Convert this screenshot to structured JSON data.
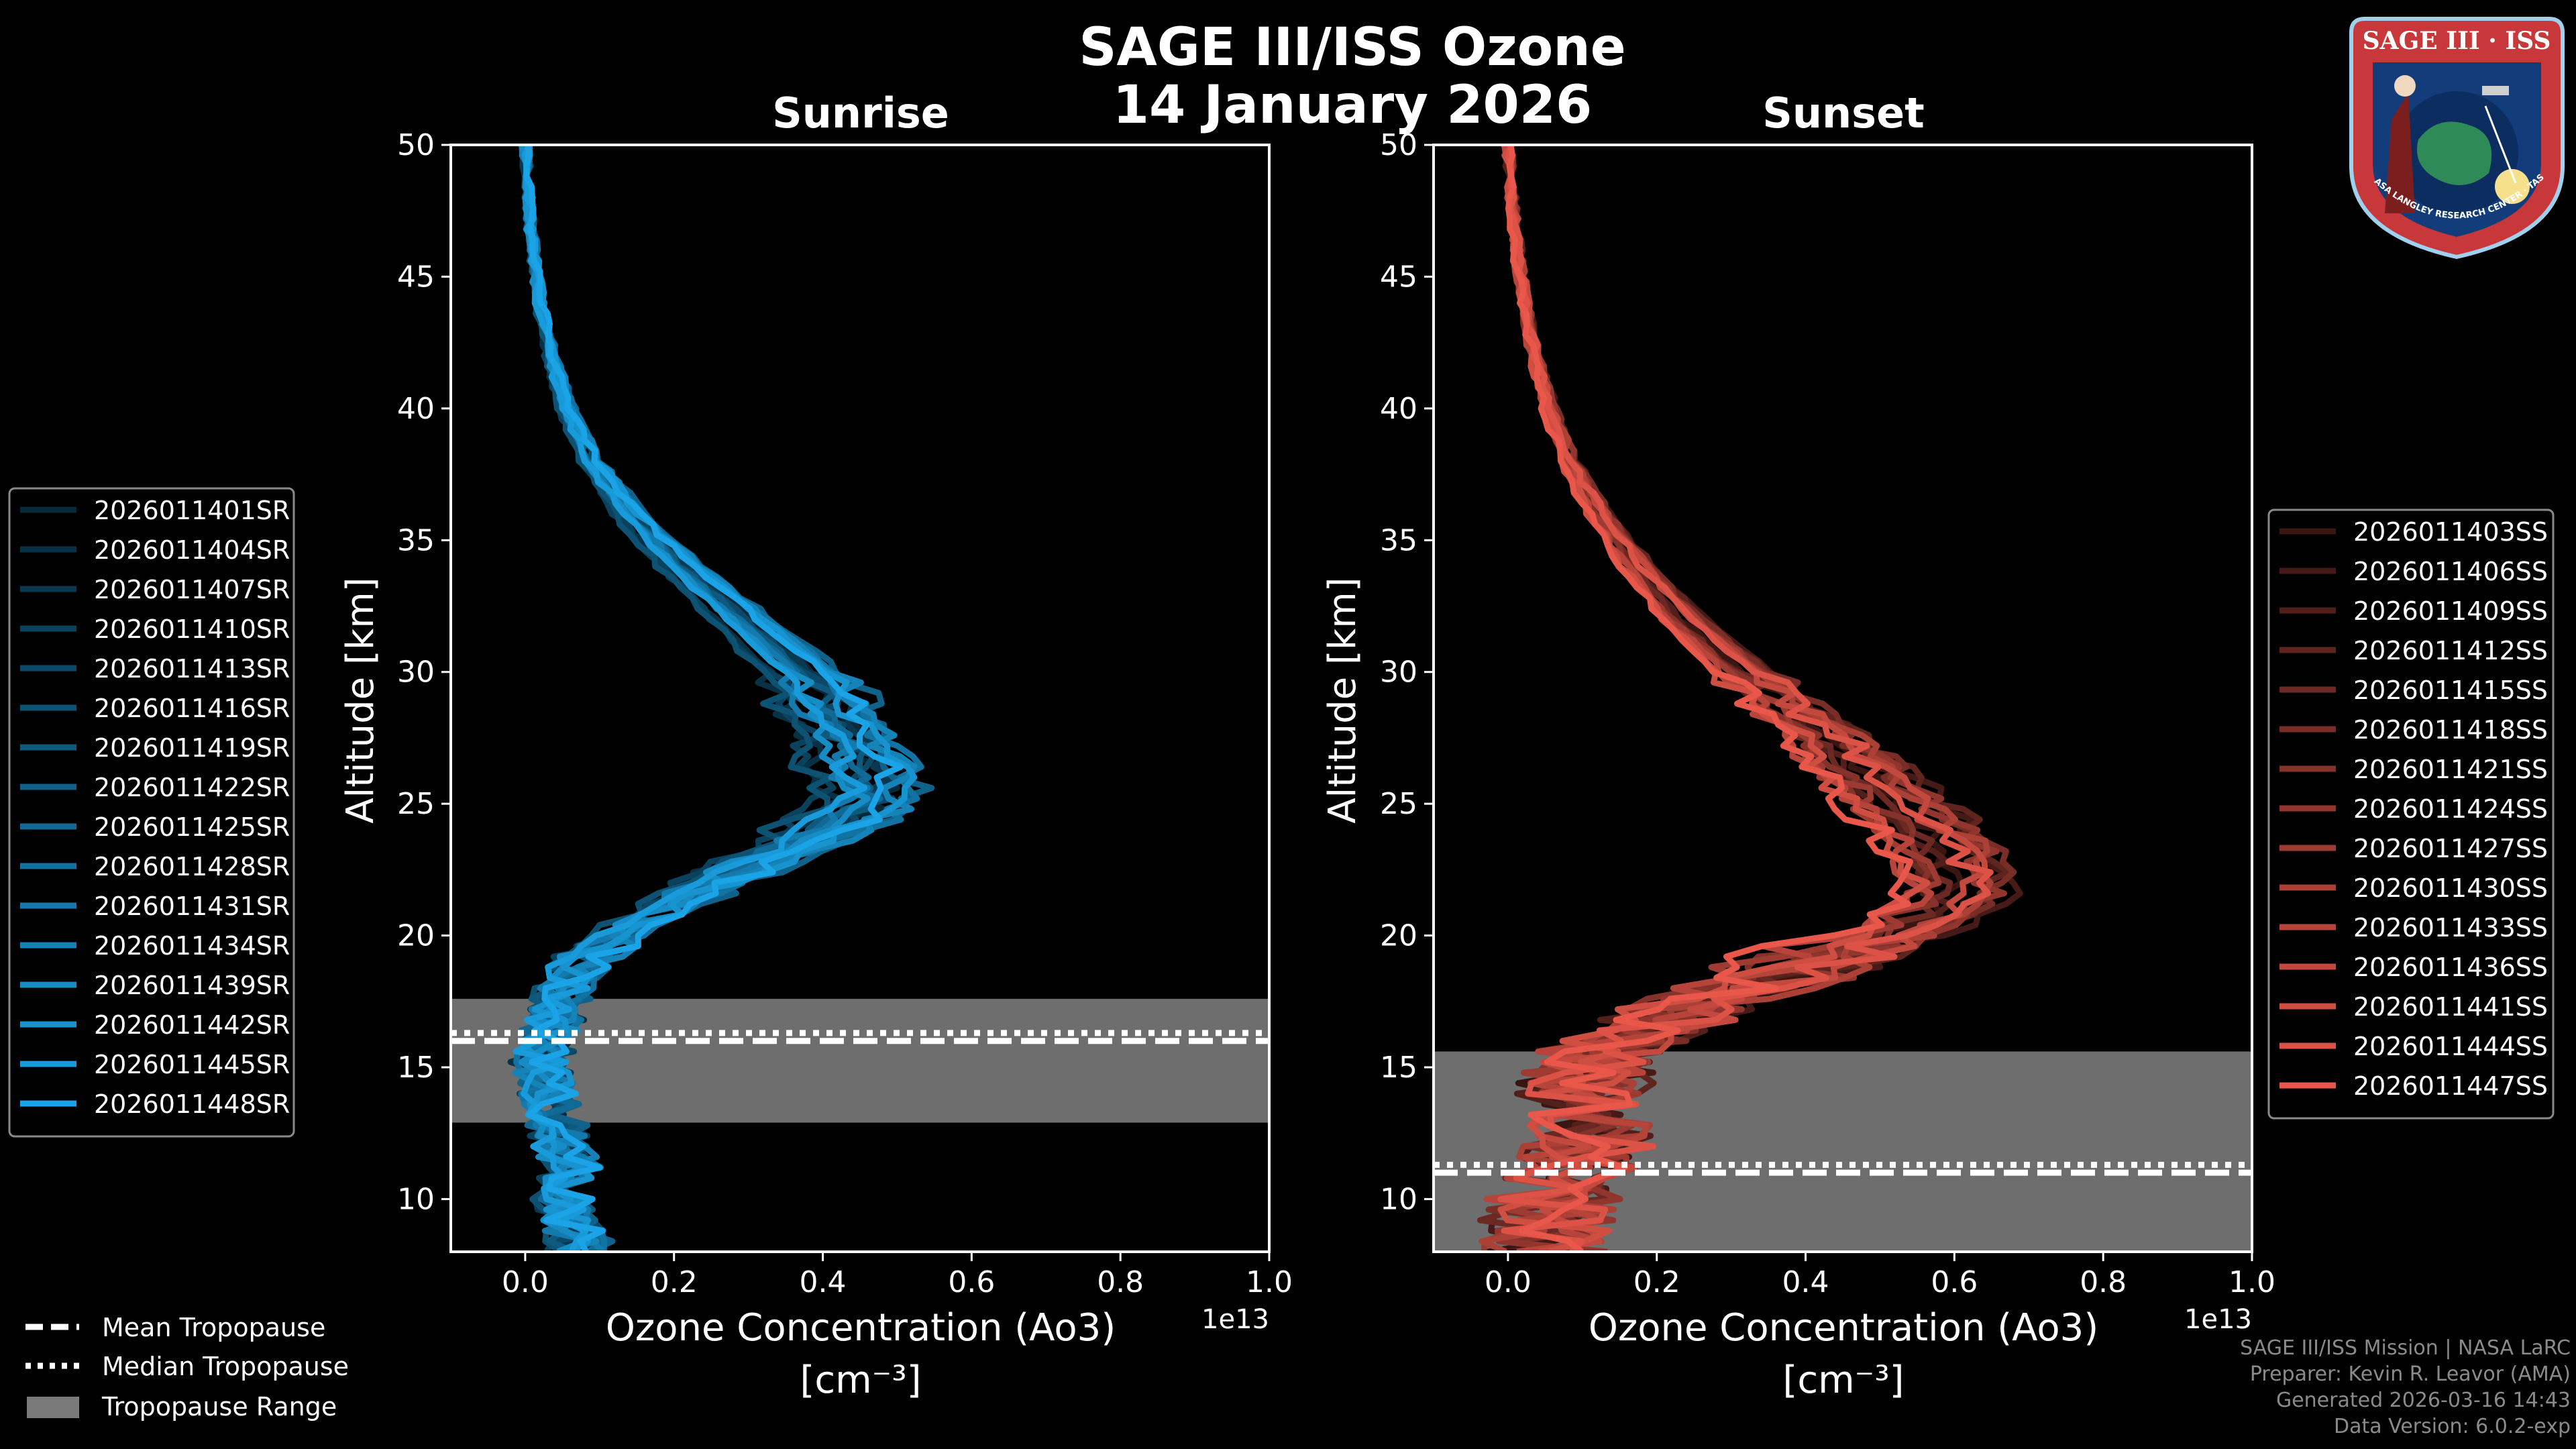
{
  "title": {
    "line1": "SAGE III/ISS Ozone",
    "line2": "14 January 2026"
  },
  "badge": {
    "text": "SAGE III · ISS",
    "ring_text": "BALL · NASA LANGLEY RESEARCH CENTER · TAS-I · ESA"
  },
  "footer": {
    "mission": "SAGE III/ISS Mission | NASA LaRC",
    "preparer": "Preparer: Kevin R. Leavor (AMA)",
    "generated": "Generated 2026-03-16 14:43",
    "version": "Data Version: 6.0.2-exp"
  },
  "colors": {
    "sunrise": "#1aa3e6",
    "sunset": "#e8574a",
    "band": "#7a7a7a"
  },
  "chart_data": [
    {
      "type": "line",
      "title": "Sunrise",
      "xlabel": "Ozone Concentration (Ao3)",
      "xunit": "[cm⁻³]",
      "ylabel": "Altitude [km]",
      "xlim": [
        -0.1,
        1.0
      ],
      "ylim": [
        8,
        50
      ],
      "xticks": [
        "0.0",
        "0.2",
        "0.4",
        "0.6",
        "0.8",
        "1.0"
      ],
      "yticks": [
        "10",
        "15",
        "20",
        "25",
        "30",
        "35",
        "40",
        "45",
        "50"
      ],
      "offset_text": "1e13",
      "tropopause": {
        "mean": 16.0,
        "median": 16.3,
        "range": [
          12.9,
          17.6
        ]
      },
      "legend_position": "left",
      "series": [
        {
          "name": "2026011401SR"
        },
        {
          "name": "2026011404SR"
        },
        {
          "name": "2026011407SR"
        },
        {
          "name": "2026011410SR"
        },
        {
          "name": "2026011413SR"
        },
        {
          "name": "2026011416SR"
        },
        {
          "name": "2026011419SR"
        },
        {
          "name": "2026011422SR"
        },
        {
          "name": "2026011425SR"
        },
        {
          "name": "2026011428SR"
        },
        {
          "name": "2026011431SR"
        },
        {
          "name": "2026011434SR"
        },
        {
          "name": "2026011439SR"
        },
        {
          "name": "2026011442SR"
        },
        {
          "name": "2026011445SR"
        },
        {
          "name": "2026011448SR"
        }
      ],
      "profile": {
        "alt": [
          50,
          48,
          46,
          44,
          42,
          40,
          38,
          36,
          34,
          32,
          30,
          28,
          27,
          26,
          25,
          24,
          23,
          22,
          21,
          20,
          19,
          18,
          17,
          16,
          15,
          14,
          13,
          12,
          11,
          10,
          9,
          8.5
        ],
        "conc": [
          0.0,
          0.005,
          0.01,
          0.02,
          0.035,
          0.055,
          0.09,
          0.14,
          0.21,
          0.29,
          0.37,
          0.42,
          0.44,
          0.45,
          0.46,
          0.4,
          0.33,
          0.25,
          0.18,
          0.12,
          0.08,
          0.05,
          0.04,
          0.03,
          0.02,
          0.03,
          0.04,
          0.05,
          0.06,
          0.05,
          0.06,
          0.07
        ]
      }
    },
    {
      "type": "line",
      "title": "Sunset",
      "xlabel": "Ozone Concentration (Ao3)",
      "xunit": "[cm⁻³]",
      "ylabel": "Altitude [km]",
      "xlim": [
        -0.1,
        1.0
      ],
      "ylim": [
        8,
        50
      ],
      "xticks": [
        "0.0",
        "0.2",
        "0.4",
        "0.6",
        "0.8",
        "1.0"
      ],
      "yticks": [
        "10",
        "15",
        "20",
        "25",
        "30",
        "35",
        "40",
        "45",
        "50"
      ],
      "offset_text": "1e13",
      "tropopause": {
        "mean": 11.0,
        "median": 11.3,
        "range": [
          8,
          15.6
        ]
      },
      "legend_position": "right",
      "series": [
        {
          "name": "2026011403SS"
        },
        {
          "name": "2026011406SS"
        },
        {
          "name": "2026011409SS"
        },
        {
          "name": "2026011412SS"
        },
        {
          "name": "2026011415SS"
        },
        {
          "name": "2026011418SS"
        },
        {
          "name": "2026011421SS"
        },
        {
          "name": "2026011424SS"
        },
        {
          "name": "2026011427SS"
        },
        {
          "name": "2026011430SS"
        },
        {
          "name": "2026011433SS"
        },
        {
          "name": "2026011436SS"
        },
        {
          "name": "2026011441SS"
        },
        {
          "name": "2026011444SS"
        },
        {
          "name": "2026011447SS"
        }
      ],
      "profile": {
        "alt": [
          50,
          48,
          46,
          44,
          42,
          40,
          38,
          36,
          34,
          32,
          30,
          28,
          26,
          24,
          23,
          22,
          21,
          20,
          19,
          18,
          17,
          16,
          15,
          14,
          13,
          12,
          11,
          10,
          9,
          8.5
        ],
        "conc": [
          0.0,
          0.005,
          0.012,
          0.022,
          0.035,
          0.055,
          0.08,
          0.12,
          0.17,
          0.23,
          0.31,
          0.4,
          0.47,
          0.55,
          0.58,
          0.59,
          0.57,
          0.5,
          0.4,
          0.3,
          0.22,
          0.15,
          0.1,
          0.1,
          0.12,
          0.1,
          0.08,
          0.06,
          0.05,
          0.05
        ]
      }
    }
  ],
  "legend_common": {
    "mean": "Mean Tropopause",
    "median": "Median Tropopause",
    "range": "Tropopause Range"
  }
}
